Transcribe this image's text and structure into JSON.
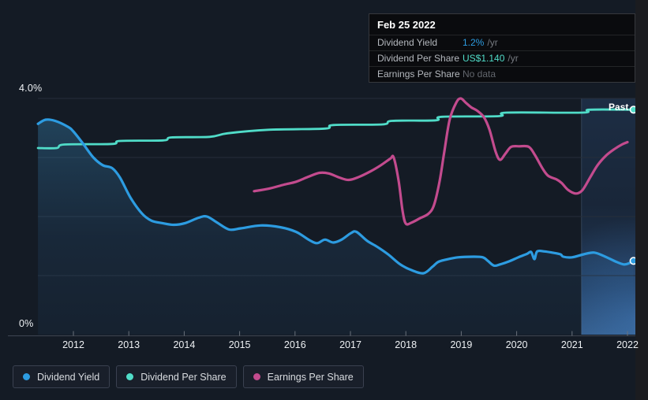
{
  "colors": {
    "dividend_yield": "#2d9ce1",
    "dividend_per_share": "#50dcc8",
    "earnings_per_share": "#c34b8e",
    "no_data_text": "#62666d",
    "background": "#141b25"
  },
  "tooltip": {
    "date": "Feb 25 2022",
    "rows": [
      {
        "label": "Dividend Yield",
        "value": "1.2%",
        "suffix": "/yr",
        "color": "#2d9ce1"
      },
      {
        "label": "Dividend Per Share",
        "value": "US$1.140",
        "suffix": "/yr",
        "color": "#50dcc8"
      },
      {
        "label": "Earnings Per Share",
        "value": "No data",
        "suffix": "",
        "color": "#62666d"
      }
    ]
  },
  "annotations": {
    "past_label": "Past",
    "y_top_label": "4.0%",
    "y_zero_label": "0%"
  },
  "legend": [
    {
      "label": "Dividend Yield",
      "color": "#2d9ce1"
    },
    {
      "label": "Dividend Per Share",
      "color": "#50dcc8"
    },
    {
      "label": "Earnings Per Share",
      "color": "#c34b8e"
    }
  ],
  "chart_data": {
    "type": "line",
    "x_ticks": [
      "2012",
      "2013",
      "2014",
      "2015",
      "2016",
      "2017",
      "2018",
      "2019",
      "2020",
      "2021",
      "2022"
    ],
    "x_range": [
      2011.35,
      2022.15
    ],
    "y_range": [
      0,
      4
    ],
    "y_unit": "%",
    "gridlines_pct": [
      1,
      2,
      3,
      4
    ],
    "past_region_start": 2021.17,
    "series": [
      {
        "name": "Dividend Yield",
        "color": "#2d9ce1",
        "width": 3.2,
        "area": true,
        "end_dot": true,
        "points": [
          [
            2011.36,
            3.57
          ],
          [
            2011.5,
            3.64
          ],
          [
            2011.67,
            3.62
          ],
          [
            2011.9,
            3.52
          ],
          [
            2012.0,
            3.44
          ],
          [
            2012.17,
            3.24
          ],
          [
            2012.36,
            3.0
          ],
          [
            2012.53,
            2.87
          ],
          [
            2012.7,
            2.82
          ],
          [
            2012.84,
            2.66
          ],
          [
            2013.03,
            2.32
          ],
          [
            2013.24,
            2.05
          ],
          [
            2013.41,
            1.93
          ],
          [
            2013.6,
            1.89
          ],
          [
            2013.81,
            1.86
          ],
          [
            2014.02,
            1.89
          ],
          [
            2014.26,
            1.98
          ],
          [
            2014.41,
            2.0
          ],
          [
            2014.59,
            1.9
          ],
          [
            2014.81,
            1.78
          ],
          [
            2015.02,
            1.8
          ],
          [
            2015.38,
            1.85
          ],
          [
            2015.73,
            1.82
          ],
          [
            2016.02,
            1.74
          ],
          [
            2016.26,
            1.6
          ],
          [
            2016.4,
            1.55
          ],
          [
            2016.54,
            1.61
          ],
          [
            2016.69,
            1.56
          ],
          [
            2016.84,
            1.61
          ],
          [
            2017.01,
            1.72
          ],
          [
            2017.11,
            1.74
          ],
          [
            2017.3,
            1.59
          ],
          [
            2017.48,
            1.49
          ],
          [
            2017.68,
            1.36
          ],
          [
            2017.9,
            1.19
          ],
          [
            2018.11,
            1.09
          ],
          [
            2018.32,
            1.04
          ],
          [
            2018.48,
            1.15
          ],
          [
            2018.58,
            1.23
          ],
          [
            2018.72,
            1.27
          ],
          [
            2018.94,
            1.31
          ],
          [
            2019.22,
            1.32
          ],
          [
            2019.39,
            1.31
          ],
          [
            2019.48,
            1.25
          ],
          [
            2019.59,
            1.17
          ],
          [
            2019.7,
            1.19
          ],
          [
            2019.86,
            1.24
          ],
          [
            2020.03,
            1.31
          ],
          [
            2020.19,
            1.37
          ],
          [
            2020.26,
            1.4
          ],
          [
            2020.32,
            1.28
          ],
          [
            2020.37,
            1.41
          ],
          [
            2020.5,
            1.41
          ],
          [
            2020.64,
            1.39
          ],
          [
            2020.79,
            1.36
          ],
          [
            2020.84,
            1.32
          ],
          [
            2021.0,
            1.31
          ],
          [
            2021.21,
            1.36
          ],
          [
            2021.4,
            1.39
          ],
          [
            2021.6,
            1.32
          ],
          [
            2021.78,
            1.24
          ],
          [
            2021.93,
            1.19
          ],
          [
            2022.03,
            1.21
          ],
          [
            2022.11,
            1.25
          ]
        ]
      },
      {
        "name": "Dividend Per Share",
        "color": "#50dcc8",
        "width": 2.8,
        "area": false,
        "end_dot": true,
        "points": [
          [
            2011.36,
            3.16
          ],
          [
            2011.7,
            3.16
          ],
          [
            2011.84,
            3.22
          ],
          [
            2012.7,
            3.23
          ],
          [
            2012.84,
            3.28
          ],
          [
            2013.62,
            3.29
          ],
          [
            2013.77,
            3.34
          ],
          [
            2014.46,
            3.35
          ],
          [
            2014.78,
            3.41
          ],
          [
            2015.52,
            3.47
          ],
          [
            2016.54,
            3.49
          ],
          [
            2016.69,
            3.55
          ],
          [
            2017.58,
            3.56
          ],
          [
            2017.75,
            3.62
          ],
          [
            2018.54,
            3.63
          ],
          [
            2018.65,
            3.69
          ],
          [
            2019.68,
            3.7
          ],
          [
            2019.82,
            3.76
          ],
          [
            2021.19,
            3.76
          ],
          [
            2021.31,
            3.81
          ],
          [
            2022.11,
            3.81
          ]
        ]
      },
      {
        "name": "Earnings Per Share",
        "color": "#c34b8e",
        "width": 3.2,
        "area": false,
        "end_dot": false,
        "points": [
          [
            2015.26,
            2.43
          ],
          [
            2015.52,
            2.47
          ],
          [
            2015.8,
            2.54
          ],
          [
            2016.02,
            2.59
          ],
          [
            2016.23,
            2.67
          ],
          [
            2016.44,
            2.74
          ],
          [
            2016.61,
            2.73
          ],
          [
            2016.8,
            2.66
          ],
          [
            2016.97,
            2.62
          ],
          [
            2017.15,
            2.67
          ],
          [
            2017.37,
            2.77
          ],
          [
            2017.55,
            2.87
          ],
          [
            2017.72,
            2.98
          ],
          [
            2017.78,
            3.0
          ],
          [
            2017.87,
            2.6
          ],
          [
            2017.94,
            2.1
          ],
          [
            2018.0,
            1.88
          ],
          [
            2018.11,
            1.9
          ],
          [
            2018.25,
            1.97
          ],
          [
            2018.41,
            2.05
          ],
          [
            2018.51,
            2.2
          ],
          [
            2018.61,
            2.6
          ],
          [
            2018.69,
            3.07
          ],
          [
            2018.79,
            3.64
          ],
          [
            2018.91,
            3.93
          ],
          [
            2018.99,
            4.0
          ],
          [
            2019.08,
            3.93
          ],
          [
            2019.18,
            3.85
          ],
          [
            2019.29,
            3.79
          ],
          [
            2019.41,
            3.68
          ],
          [
            2019.51,
            3.47
          ],
          [
            2019.62,
            3.1
          ],
          [
            2019.7,
            2.96
          ],
          [
            2019.8,
            3.07
          ],
          [
            2019.9,
            3.18
          ],
          [
            2020.05,
            3.19
          ],
          [
            2020.22,
            3.18
          ],
          [
            2020.33,
            3.04
          ],
          [
            2020.47,
            2.81
          ],
          [
            2020.57,
            2.69
          ],
          [
            2020.72,
            2.63
          ],
          [
            2020.81,
            2.57
          ],
          [
            2020.93,
            2.45
          ],
          [
            2021.07,
            2.39
          ],
          [
            2021.19,
            2.45
          ],
          [
            2021.33,
            2.67
          ],
          [
            2021.46,
            2.87
          ],
          [
            2021.61,
            3.03
          ],
          [
            2021.76,
            3.14
          ],
          [
            2021.9,
            3.22
          ],
          [
            2022.0,
            3.26
          ]
        ]
      }
    ]
  }
}
